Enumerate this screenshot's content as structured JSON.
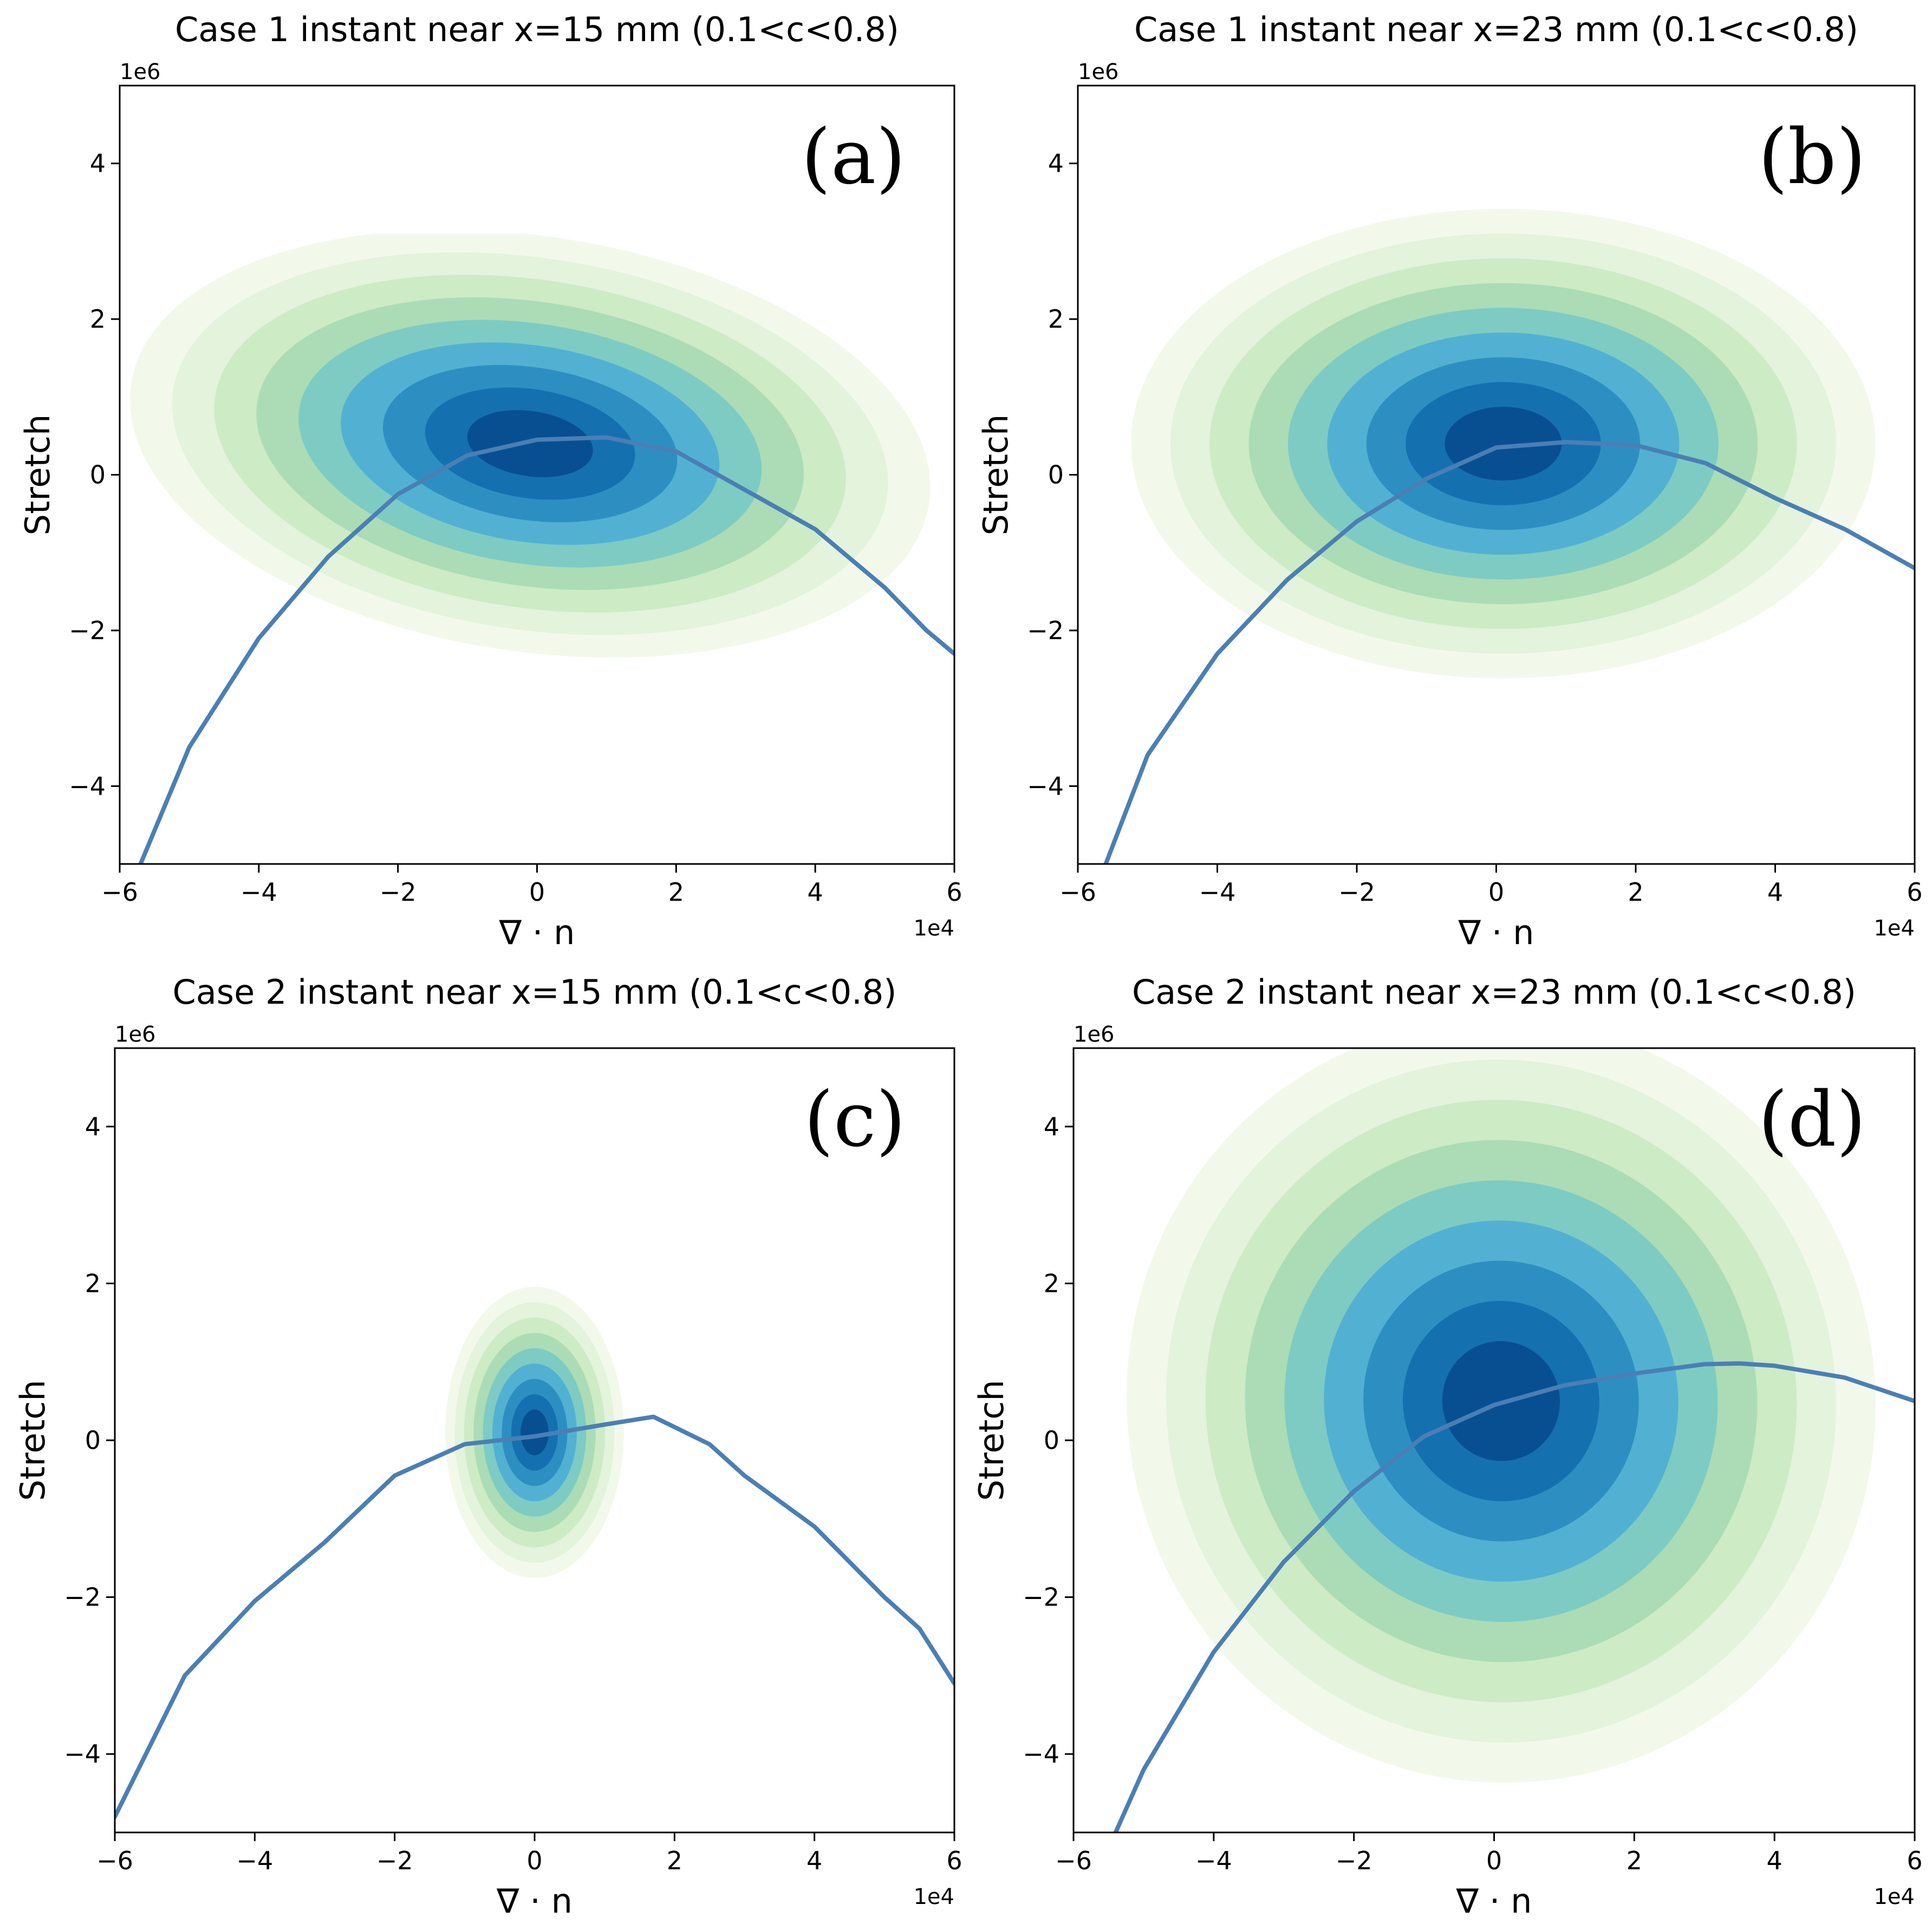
{
  "chart_data": [
    {
      "type": "contour",
      "panel_label": "(a)",
      "title": "Case 1 instant near x=15 mm (0.1<c<0.8)",
      "xlabel": "∇ · n",
      "ylabel": "Stretch",
      "x_offset_text": "1e4",
      "y_offset_text": "1e6",
      "xlim": [
        -6,
        6
      ],
      "ylim": [
        -5,
        5
      ],
      "xticks": [
        -6,
        -4,
        -2,
        0,
        2,
        4,
        6
      ],
      "yticks": [
        -4,
        -2,
        0,
        2,
        4
      ],
      "density": {
        "center": [
          -0.1,
          0.4
        ],
        "sx": 2.5,
        "sy": 1.15,
        "rho": -0.15,
        "levels": 9,
        "extent": [
          [
            -6,
            6
          ],
          [
            -4.6,
            3.1
          ]
        ]
      },
      "mean_curve": {
        "x": [
          -5.7,
          -5,
          -4,
          -3,
          -2,
          -1,
          0,
          1,
          2,
          3,
          4,
          5,
          5.6,
          6
        ],
        "y": [
          -5.0,
          -3.5,
          -2.1,
          -1.05,
          -0.25,
          0.25,
          0.45,
          0.48,
          0.3,
          -0.2,
          -0.7,
          -1.45,
          -2.0,
          -2.3
        ]
      }
    },
    {
      "type": "contour",
      "panel_label": "(b)",
      "title": "Case 1 instant near x=23 mm (0.1<c<0.8)",
      "xlabel": "∇ · n",
      "ylabel": "Stretch",
      "x_offset_text": "1e4",
      "y_offset_text": "1e6",
      "xlim": [
        -6,
        6
      ],
      "ylim": [
        -5,
        5
      ],
      "xticks": [
        -6,
        -4,
        -2,
        0,
        2,
        4,
        6
      ],
      "yticks": [
        -4,
        -2,
        0,
        2,
        4
      ],
      "density": {
        "center": [
          0.1,
          0.4
        ],
        "sx": 2.3,
        "sy": 1.3,
        "rho": 0.0,
        "levels": 9,
        "extent": [
          [
            -6,
            6
          ],
          [
            -5,
            3.7
          ]
        ]
      },
      "mean_curve": {
        "x": [
          -5.6,
          -5,
          -4,
          -3,
          -2,
          -1,
          0,
          1,
          2,
          3,
          4,
          5,
          6
        ],
        "y": [
          -5.0,
          -3.6,
          -2.3,
          -1.35,
          -0.6,
          -0.05,
          0.35,
          0.42,
          0.38,
          0.15,
          -0.3,
          -0.7,
          -1.2
        ]
      }
    },
    {
      "type": "contour",
      "panel_label": "(c)",
      "title": "Case 2 instant near x=15 mm (0.1<c<0.8)",
      "xlabel": "∇ · n",
      "ylabel": "Stretch",
      "x_offset_text": "1e4",
      "y_offset_text": "1e6",
      "xlim": [
        -6,
        6
      ],
      "ylim": [
        -5,
        5
      ],
      "xticks": [
        -6,
        -4,
        -2,
        0,
        2,
        4,
        6
      ],
      "yticks": [
        -4,
        -2,
        0,
        2,
        4
      ],
      "density": {
        "center": [
          0.0,
          0.1
        ],
        "sx": 0.55,
        "sy": 0.8,
        "rho": 0.0,
        "levels": 9,
        "extent": [
          [
            -6,
            6
          ],
          [
            -4.7,
            2.5
          ]
        ]
      },
      "mean_curve": {
        "x": [
          -6,
          -5.5,
          -5,
          -4,
          -3,
          -2,
          -1,
          0,
          1,
          1.7,
          2.5,
          3,
          4,
          5,
          5.5,
          6
        ],
        "y": [
          -4.8,
          -3.9,
          -3.0,
          -2.05,
          -1.3,
          -0.45,
          -0.05,
          0.05,
          0.2,
          0.3,
          -0.05,
          -0.45,
          -1.1,
          -2.0,
          -2.4,
          -3.1
        ]
      }
    },
    {
      "type": "contour",
      "panel_label": "(d)",
      "title": "Case 2 instant near x=23 mm (0.1<c<0.8)",
      "xlabel": "∇ · n",
      "ylabel": "Stretch",
      "x_offset_text": "1e4",
      "y_offset_text": "1e6",
      "xlim": [
        -6,
        6
      ],
      "ylim": [
        -5,
        5
      ],
      "xticks": [
        -6,
        -4,
        -2,
        0,
        2,
        4,
        6
      ],
      "yticks": [
        -4,
        -2,
        0,
        2,
        4
      ],
      "density": {
        "center": [
          0.1,
          0.5
        ],
        "sx": 2.3,
        "sy": 2.1,
        "rho": 0.25,
        "levels": 9,
        "extent": [
          [
            -5.6,
            6
          ],
          [
            -5,
            5
          ]
        ]
      },
      "mean_curve": {
        "x": [
          -5.4,
          -5,
          -4,
          -3,
          -2,
          -1,
          0,
          1,
          2,
          3,
          3.5,
          4,
          5,
          6
        ],
        "y": [
          -5.0,
          -4.2,
          -2.7,
          -1.55,
          -0.65,
          0.05,
          0.45,
          0.7,
          0.85,
          0.97,
          0.98,
          0.95,
          0.8,
          0.5
        ]
      }
    }
  ]
}
